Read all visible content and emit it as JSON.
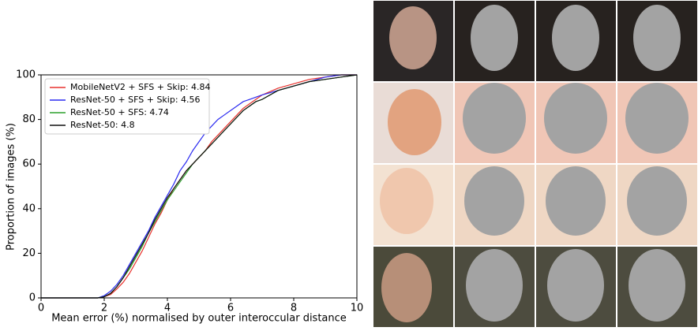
{
  "chart_data": {
    "type": "line",
    "xlabel": "Mean error (%) normalised by outer interoccular distance",
    "ylabel": "Proportion of images (%)",
    "x": [
      0,
      1,
      1.8,
      2,
      2.2,
      2.4,
      2.6,
      2.8,
      3,
      3.2,
      3.4,
      3.6,
      3.8,
      4,
      4.2,
      4.4,
      4.6,
      4.8,
      5,
      5.2,
      5.4,
      5.6,
      5.8,
      6,
      6.2,
      6.4,
      6.6,
      6.8,
      7,
      7.5,
      8,
      8.5,
      9,
      9.5,
      10
    ],
    "series": [
      {
        "name": "MobileNetV2 + SFS + Skip: 4.84",
        "color": "#e8322e",
        "values": [
          0,
          0,
          0,
          0.5,
          1.5,
          4,
          7,
          11,
          16,
          21,
          27,
          33,
          38,
          44,
          49,
          53,
          57,
          60,
          63,
          66,
          70,
          73,
          76,
          79,
          82,
          85,
          87,
          89,
          91,
          94,
          96,
          98,
          99,
          100,
          100
        ]
      },
      {
        "name": "ResNet-50 + SFS + Skip: 4.56",
        "color": "#2b2bf0",
        "values": [
          0,
          0,
          0,
          1,
          3,
          6,
          10,
          15,
          20,
          25,
          30,
          36,
          41,
          46,
          51,
          57,
          61,
          66,
          70,
          74,
          77,
          80,
          82,
          84,
          86,
          88,
          89,
          90,
          91,
          93,
          95,
          97,
          99,
          100,
          100
        ]
      },
      {
        "name": "ResNet-50 + SFS: 4.74",
        "color": "#2ca02c",
        "values": [
          0,
          0,
          0,
          0.5,
          2,
          5,
          9,
          13,
          18,
          23,
          29,
          34,
          39,
          44,
          48,
          52,
          56,
          60,
          63,
          66,
          69,
          72,
          75,
          78,
          81,
          84,
          86,
          88,
          89,
          93,
          95,
          97,
          98,
          99,
          100
        ]
      },
      {
        "name": "ResNet-50: 4.8",
        "color": "#111111",
        "values": [
          0,
          0,
          0,
          0.5,
          2,
          5,
          9,
          14,
          19,
          24,
          29,
          35,
          40,
          45,
          49,
          53,
          57,
          60,
          63,
          66,
          69,
          72,
          75,
          78,
          81,
          84,
          86,
          88,
          89,
          93,
          95,
          97,
          98,
          99,
          100
        ]
      }
    ],
    "xlim": [
      0,
      10
    ],
    "xticks": [
      0,
      2,
      4,
      6,
      8,
      10
    ],
    "ylim": [
      0,
      100
    ],
    "yticks": [
      0,
      20,
      40,
      60,
      80,
      100
    ],
    "grid": false,
    "legend": "upper-left"
  }
}
